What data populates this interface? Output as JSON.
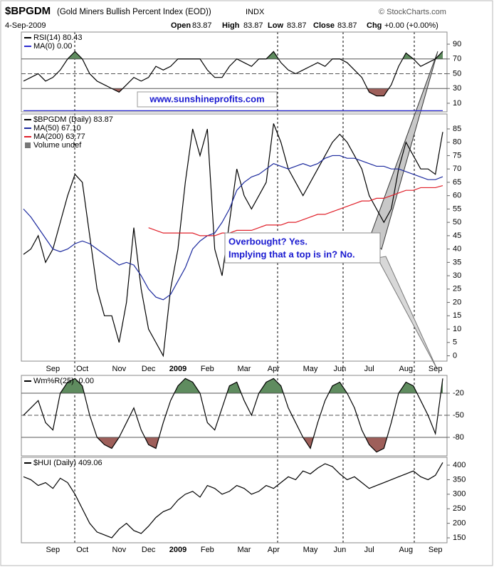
{
  "header": {
    "symbol": "$BPGDM",
    "description": "(Gold Miners Bullish Percent Index (EOD))",
    "exchange": "INDX",
    "source": "© StockCharts.com",
    "date": "4-Sep-2009",
    "quote": [
      {
        "label": "Open",
        "value": 83.87
      },
      {
        "label": "High",
        "value": 83.87
      },
      {
        "label": "Low",
        "value": 83.87
      },
      {
        "label": "Close",
        "value": 83.87
      },
      {
        "label": "Chg",
        "value": "+0.00 (+0.00%)"
      }
    ]
  },
  "chart_data": [
    {
      "type": "line",
      "annotations": [
        "www.sunshineprofits.com"
      ],
      "series": [
        {
          "name": "RSI(14) 80.43",
          "color": "#000000",
          "values": [
            40,
            45,
            50,
            40,
            45,
            55,
            70,
            80,
            70,
            50,
            40,
            35,
            30,
            25,
            35,
            45,
            40,
            45,
            60,
            55,
            60,
            70,
            70,
            70,
            70,
            55,
            45,
            45,
            60,
            70,
            65,
            60,
            70,
            70,
            80,
            65,
            55,
            50,
            55,
            60,
            65,
            60,
            70,
            70,
            65,
            55,
            45,
            25,
            20,
            20,
            35,
            60,
            78,
            70,
            60,
            65,
            70,
            80.43
          ]
        },
        {
          "name": "MA(0) 0.00",
          "color": "#2b2bd0",
          "values": [
            0,
            0,
            0,
            0,
            0,
            0,
            0,
            0,
            0,
            0,
            0,
            0,
            0,
            0,
            0,
            0,
            0,
            0,
            0,
            0,
            0,
            0,
            0,
            0,
            0,
            0,
            0,
            0,
            0,
            0,
            0,
            0,
            0,
            0,
            0,
            0,
            0,
            0,
            0,
            0,
            0,
            0,
            0,
            0,
            0,
            0,
            0,
            0,
            0,
            0,
            0,
            0,
            0,
            0,
            0,
            0,
            0,
            0
          ]
        }
      ],
      "ylim": [
        -1.6,
        106.4
      ],
      "yticks": [
        10,
        30,
        50,
        70,
        90
      ],
      "overbought": 70,
      "oversold": 30,
      "midline": 50,
      "overbought_color": "#5f8c5f",
      "oversold_color": "#9e5f5a"
    },
    {
      "type": "line",
      "annotations": [
        "Overbought? Yes.",
        "Implying that a top is in? No."
      ],
      "legend_extra": "Volume undef",
      "categories": [
        null,
        null,
        null,
        null,
        "Sep",
        null,
        null,
        null,
        "Oct",
        null,
        null,
        null,
        null,
        "Nov",
        null,
        null,
        null,
        "Dec",
        null,
        null,
        null,
        "2009",
        null,
        null,
        null,
        "Feb",
        null,
        null,
        null,
        null,
        "Mar",
        null,
        null,
        null,
        "Apr",
        null,
        null,
        null,
        null,
        "May",
        null,
        null,
        null,
        "Jun",
        null,
        null,
        null,
        "Jul",
        null,
        null,
        null,
        null,
        "Aug",
        null,
        null,
        null,
        "Sep",
        null
      ],
      "series": [
        {
          "name": "$BPGDM (Daily) 83.87",
          "color": "#000000",
          "values": [
            38,
            40,
            45,
            35,
            40,
            50,
            60,
            68,
            65,
            45,
            25,
            15,
            15,
            5,
            20,
            48,
            25,
            10,
            5,
            0,
            25,
            40,
            65,
            85,
            75,
            85,
            40,
            30,
            50,
            70,
            60,
            55,
            60,
            65,
            87,
            80,
            70,
            65,
            60,
            65,
            70,
            75,
            80,
            83,
            80,
            75,
            70,
            60,
            55,
            50,
            55,
            70,
            80,
            75,
            70,
            70,
            68,
            83.87
          ]
        },
        {
          "name": "MA(50) 67.10",
          "color": "#1c2a9e",
          "values": [
            55,
            52,
            48,
            44,
            40,
            39,
            40,
            42,
            43,
            42,
            40,
            38,
            36,
            34,
            35,
            34,
            30,
            25,
            22,
            21,
            23,
            28,
            33,
            40,
            43,
            45,
            46,
            50,
            55,
            62,
            65,
            67,
            68,
            70,
            72,
            71,
            70,
            71,
            72,
            71,
            72,
            74,
            75,
            75,
            74,
            74,
            73,
            72,
            71,
            71,
            70,
            70,
            69,
            68,
            67,
            66,
            66,
            67.1
          ]
        },
        {
          "name": "MA(200) 63.77",
          "color": "#e0202a",
          "values": [
            null,
            null,
            null,
            null,
            null,
            null,
            null,
            null,
            null,
            null,
            null,
            null,
            null,
            null,
            null,
            null,
            null,
            48,
            47,
            46,
            46,
            46,
            46,
            46,
            45,
            45,
            45,
            46,
            46,
            47,
            47,
            47,
            48,
            49,
            49,
            49,
            50,
            50,
            51,
            52,
            53,
            53,
            54,
            55,
            56,
            57,
            58,
            58,
            59,
            59,
            60,
            61,
            62,
            62,
            63,
            63,
            63,
            63.77
          ]
        }
      ],
      "ylim": [
        -2,
        90.6
      ],
      "yticks": [
        0,
        5,
        10,
        15,
        20,
        25,
        30,
        35,
        40,
        45,
        50,
        55,
        60,
        65,
        70,
        75,
        80,
        85
      ]
    },
    {
      "type": "line",
      "series": [
        {
          "name": "Wm%R(25) -0.00",
          "color": "#000000",
          "values": [
            -50,
            -40,
            -30,
            -60,
            -70,
            -20,
            -5,
            0,
            -10,
            -50,
            -80,
            -90,
            -95,
            -80,
            -60,
            -40,
            -70,
            -90,
            -95,
            -60,
            -30,
            -10,
            0,
            -5,
            -20,
            -60,
            -70,
            -40,
            -10,
            -5,
            -30,
            -50,
            -20,
            -5,
            0,
            -10,
            -40,
            -60,
            -80,
            -95,
            -60,
            -30,
            -10,
            -5,
            -20,
            -40,
            -70,
            -90,
            -100,
            -95,
            -60,
            -20,
            -5,
            -10,
            -30,
            -50,
            -75,
            0
          ]
        }
      ],
      "ylim": [
        -105.2,
        4.2
      ],
      "yticks": [
        -20,
        -50,
        -80
      ],
      "overbought": -20,
      "oversold": -80,
      "midline": -50,
      "overbought_color": "#5f8c5f",
      "oversold_color": "#9e5f5a"
    },
    {
      "type": "line",
      "categories": [
        null,
        null,
        null,
        null,
        "Sep",
        null,
        null,
        null,
        "Oct",
        null,
        null,
        null,
        null,
        "Nov",
        null,
        null,
        null,
        "Dec",
        null,
        null,
        null,
        "2009",
        null,
        null,
        null,
        "Feb",
        null,
        null,
        null,
        null,
        "Mar",
        null,
        null,
        null,
        "Apr",
        null,
        null,
        null,
        null,
        "May",
        null,
        null,
        null,
        "Jun",
        null,
        null,
        null,
        "Jul",
        null,
        null,
        null,
        null,
        "Aug",
        null,
        null,
        null,
        "Sep",
        null
      ],
      "series": [
        {
          "name": "$HUI (Daily) 409.06",
          "color": "#000000",
          "values": [
            360,
            350,
            330,
            340,
            320,
            355,
            340,
            300,
            250,
            200,
            170,
            160,
            150,
            180,
            200,
            175,
            165,
            190,
            220,
            240,
            250,
            280,
            300,
            310,
            290,
            330,
            320,
            300,
            310,
            330,
            320,
            300,
            310,
            330,
            320,
            340,
            360,
            350,
            380,
            370,
            390,
            405,
            395,
            370,
            350,
            360,
            340,
            320,
            330,
            340,
            350,
            360,
            370,
            380,
            360,
            350,
            365,
            409.06
          ]
        }
      ],
      "ylim": [
        133,
        427
      ],
      "yticks": [
        150,
        200,
        250,
        300,
        350,
        400
      ]
    }
  ]
}
